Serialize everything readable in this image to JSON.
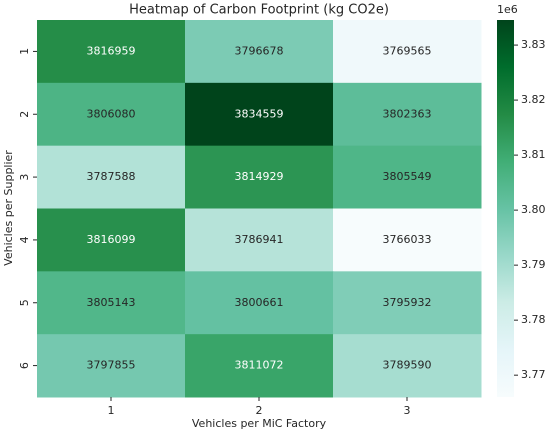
{
  "chart_data": {
    "type": "heatmap",
    "title": "Heatmap of Carbon Footprint (kg CO2e)",
    "x_label": "Vehicles per MiC Factory",
    "y_label": "Vehicles per Supplier",
    "x_categories": [
      "1",
      "2",
      "3"
    ],
    "y_categories": [
      "1",
      "2",
      "3",
      "4",
      "5",
      "6"
    ],
    "values": [
      [
        3816959,
        3796678,
        3769565
      ],
      [
        3806080,
        3834559,
        3802363
      ],
      [
        3787588,
        3814929,
        3805549
      ],
      [
        3816099,
        3786941,
        3766033
      ],
      [
        3805143,
        3800661,
        3795932
      ],
      [
        3797855,
        3811072,
        3789590
      ]
    ],
    "colormap": [
      "#f7fcfd",
      "#e5f5f9",
      "#ccece6",
      "#99d8c9",
      "#66c2a4",
      "#41ae76",
      "#238b45",
      "#006d2c",
      "#00441b"
    ],
    "colorbar_lim": [
      3766033,
      3834559
    ],
    "colorbar_ticks": [
      {
        "value": 3770000,
        "label": "3.77"
      },
      {
        "value": 3780000,
        "label": "3.78"
      },
      {
        "value": 3790000,
        "label": "3.79"
      },
      {
        "value": 3800000,
        "label": "3.80"
      },
      {
        "value": 3810000,
        "label": "3.81"
      },
      {
        "value": 3820000,
        "label": "3.82"
      },
      {
        "value": 3830000,
        "label": "3.83"
      }
    ],
    "colorbar_offset": "1e6"
  }
}
